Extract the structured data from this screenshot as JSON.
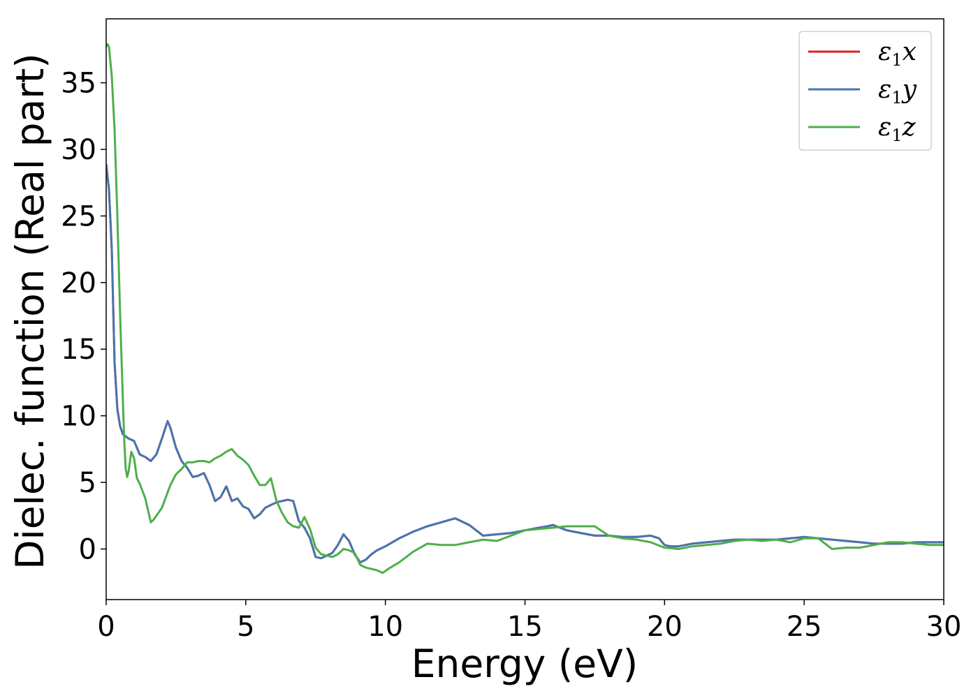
{
  "chart_data": {
    "type": "line",
    "title": "",
    "xlabel": "Energy (eV)",
    "ylabel": "Dielec. function (Real part)",
    "xlim": [
      0,
      30
    ],
    "ylim": [
      -3.8,
      39.8
    ],
    "xticks": [
      0,
      5,
      10,
      15,
      20,
      25,
      30
    ],
    "yticks": [
      0,
      5,
      10,
      15,
      20,
      25,
      30,
      35
    ],
    "grid": false,
    "legend_position": "top-right",
    "series": [
      {
        "name": "ε1x",
        "legend_symbol": "ε",
        "legend_subscript": "1",
        "legend_axis": "x",
        "color": "#e41a1c",
        "x": [
          0,
          0.1,
          0.2,
          0.3,
          0.4,
          0.5,
          0.6,
          0.8,
          1.0,
          1.2,
          1.4,
          1.6,
          1.8,
          2.0,
          2.2,
          2.3,
          2.5,
          2.7,
          2.9,
          3.1,
          3.3,
          3.5,
          3.7,
          3.9,
          4.1,
          4.3,
          4.5,
          4.7,
          4.9,
          5.1,
          5.3,
          5.5,
          5.7,
          5.9,
          6.1,
          6.3,
          6.5,
          6.7,
          6.9,
          7.1,
          7.3,
          7.5,
          7.7,
          7.9,
          8.1,
          8.3,
          8.5,
          8.7,
          8.9,
          9.1,
          9.3,
          9.5,
          9.7,
          10.0,
          10.5,
          11.0,
          11.5,
          12.0,
          12.5,
          12.7,
          13.0,
          13.5,
          14.0,
          14.5,
          15.0,
          15.5,
          15.8,
          16.0,
          16.5,
          17.0,
          17.5,
          18.0,
          18.5,
          19.0,
          19.5,
          19.8,
          20.0,
          20.2,
          20.5,
          21.0,
          21.5,
          22.0,
          22.5,
          23.0,
          23.5,
          24.0,
          24.5,
          25.0,
          25.5,
          26.0,
          26.5,
          27.0,
          27.5,
          28.0,
          28.5,
          29.0,
          29.5,
          30.0
        ],
        "y": [
          28.9,
          27.0,
          22.5,
          14.0,
          10.5,
          9.2,
          8.6,
          8.3,
          8.1,
          7.1,
          6.9,
          6.6,
          7.1,
          8.3,
          9.6,
          9.1,
          7.6,
          6.6,
          6.1,
          5.4,
          5.5,
          5.7,
          4.8,
          3.6,
          3.9,
          4.7,
          3.6,
          3.8,
          3.2,
          3.0,
          2.3,
          2.6,
          3.1,
          3.3,
          3.5,
          3.6,
          3.7,
          3.6,
          2.1,
          1.6,
          0.8,
          -0.6,
          -0.7,
          -0.5,
          -0.3,
          0.3,
          1.1,
          0.6,
          -0.4,
          -1.0,
          -0.8,
          -0.4,
          -0.1,
          0.2,
          0.8,
          1.3,
          1.7,
          2.0,
          2.3,
          2.1,
          1.8,
          1.0,
          1.1,
          1.2,
          1.4,
          1.6,
          1.7,
          1.8,
          1.4,
          1.2,
          1.0,
          1.0,
          0.9,
          0.9,
          1.0,
          0.8,
          0.3,
          0.2,
          0.2,
          0.4,
          0.5,
          0.6,
          0.7,
          0.7,
          0.7,
          0.7,
          0.8,
          0.9,
          0.8,
          0.7,
          0.6,
          0.5,
          0.4,
          0.4,
          0.4,
          0.5,
          0.5,
          0.5
        ]
      },
      {
        "name": "ε1y",
        "legend_symbol": "ε",
        "legend_subscript": "1",
        "legend_axis": "y",
        "color": "#4675b0",
        "x": [
          0,
          0.1,
          0.2,
          0.3,
          0.4,
          0.5,
          0.6,
          0.8,
          1.0,
          1.2,
          1.4,
          1.6,
          1.8,
          2.0,
          2.2,
          2.3,
          2.5,
          2.7,
          2.9,
          3.1,
          3.3,
          3.5,
          3.7,
          3.9,
          4.1,
          4.3,
          4.5,
          4.7,
          4.9,
          5.1,
          5.3,
          5.5,
          5.7,
          5.9,
          6.1,
          6.3,
          6.5,
          6.7,
          6.9,
          7.1,
          7.3,
          7.5,
          7.7,
          7.9,
          8.1,
          8.3,
          8.5,
          8.7,
          8.9,
          9.1,
          9.3,
          9.5,
          9.7,
          10.0,
          10.5,
          11.0,
          11.5,
          12.0,
          12.5,
          12.7,
          13.0,
          13.5,
          14.0,
          14.5,
          15.0,
          15.5,
          15.8,
          16.0,
          16.5,
          17.0,
          17.5,
          18.0,
          18.5,
          19.0,
          19.5,
          19.8,
          20.0,
          20.2,
          20.5,
          21.0,
          21.5,
          22.0,
          22.5,
          23.0,
          23.5,
          24.0,
          24.5,
          25.0,
          25.5,
          26.0,
          26.5,
          27.0,
          27.5,
          28.0,
          28.5,
          29.0,
          29.5,
          30.0
        ],
        "y": [
          28.9,
          27.0,
          22.5,
          14.0,
          10.5,
          9.2,
          8.6,
          8.3,
          8.1,
          7.1,
          6.9,
          6.6,
          7.1,
          8.3,
          9.6,
          9.1,
          7.6,
          6.6,
          6.1,
          5.4,
          5.5,
          5.7,
          4.8,
          3.6,
          3.9,
          4.7,
          3.6,
          3.8,
          3.2,
          3.0,
          2.3,
          2.6,
          3.1,
          3.3,
          3.5,
          3.6,
          3.7,
          3.6,
          2.1,
          1.6,
          0.8,
          -0.6,
          -0.7,
          -0.5,
          -0.3,
          0.3,
          1.1,
          0.6,
          -0.4,
          -1.0,
          -0.8,
          -0.4,
          -0.1,
          0.2,
          0.8,
          1.3,
          1.7,
          2.0,
          2.3,
          2.1,
          1.8,
          1.0,
          1.1,
          1.2,
          1.4,
          1.6,
          1.7,
          1.8,
          1.4,
          1.2,
          1.0,
          1.0,
          0.9,
          0.9,
          1.0,
          0.8,
          0.3,
          0.2,
          0.2,
          0.4,
          0.5,
          0.6,
          0.7,
          0.7,
          0.7,
          0.7,
          0.8,
          0.9,
          0.8,
          0.7,
          0.6,
          0.5,
          0.4,
          0.4,
          0.4,
          0.5,
          0.5,
          0.5
        ]
      },
      {
        "name": "ε1z",
        "legend_symbol": "ε",
        "legend_subscript": "1",
        "legend_axis": "z",
        "color": "#4daf4a",
        "x": [
          0,
          0.05,
          0.1,
          0.2,
          0.3,
          0.4,
          0.5,
          0.6,
          0.65,
          0.7,
          0.75,
          0.8,
          0.9,
          1.0,
          1.1,
          1.2,
          1.4,
          1.6,
          1.7,
          2.0,
          2.3,
          2.5,
          2.7,
          2.9,
          3.1,
          3.3,
          3.5,
          3.7,
          3.9,
          4.1,
          4.3,
          4.5,
          4.7,
          4.9,
          5.1,
          5.3,
          5.5,
          5.7,
          5.9,
          6.1,
          6.3,
          6.5,
          6.7,
          6.9,
          7.1,
          7.3,
          7.5,
          7.7,
          7.9,
          8.1,
          8.3,
          8.5,
          8.7,
          8.9,
          9.1,
          9.3,
          9.5,
          9.7,
          9.9,
          10.1,
          10.5,
          11.0,
          11.5,
          12.0,
          12.5,
          13.0,
          13.5,
          14.0,
          14.5,
          15.0,
          15.5,
          16.0,
          16.5,
          17.0,
          17.5,
          18.0,
          18.5,
          19.0,
          19.5,
          20.0,
          20.5,
          21.0,
          21.5,
          22.0,
          22.5,
          23.0,
          23.5,
          24.0,
          24.5,
          25.0,
          25.5,
          26.0,
          26.5,
          27.0,
          27.5,
          28.0,
          28.5,
          29.0,
          29.5,
          30.0
        ],
        "y": [
          37.7,
          37.9,
          37.7,
          35.5,
          31.5,
          25.0,
          17.5,
          11.0,
          8.0,
          6.0,
          5.4,
          5.8,
          7.3,
          6.8,
          5.3,
          4.9,
          3.8,
          2.0,
          2.2,
          3.1,
          4.8,
          5.6,
          6.0,
          6.5,
          6.5,
          6.6,
          6.6,
          6.5,
          6.8,
          7.0,
          7.3,
          7.5,
          7.0,
          6.7,
          6.3,
          5.5,
          4.8,
          4.8,
          5.3,
          3.6,
          2.7,
          2.0,
          1.7,
          1.6,
          2.4,
          1.5,
          0.1,
          -0.4,
          -0.5,
          -0.6,
          -0.4,
          0.0,
          -0.1,
          -0.3,
          -1.2,
          -1.4,
          -1.5,
          -1.6,
          -1.8,
          -1.5,
          -1.0,
          -0.2,
          0.4,
          0.3,
          0.3,
          0.5,
          0.7,
          0.6,
          1.0,
          1.4,
          1.5,
          1.6,
          1.7,
          1.7,
          1.7,
          1.0,
          0.8,
          0.7,
          0.5,
          0.1,
          0.0,
          0.2,
          0.3,
          0.4,
          0.6,
          0.7,
          0.6,
          0.7,
          0.5,
          0.8,
          0.8,
          0.0,
          0.1,
          0.1,
          0.3,
          0.5,
          0.5,
          0.4,
          0.3,
          0.3
        ]
      }
    ]
  }
}
